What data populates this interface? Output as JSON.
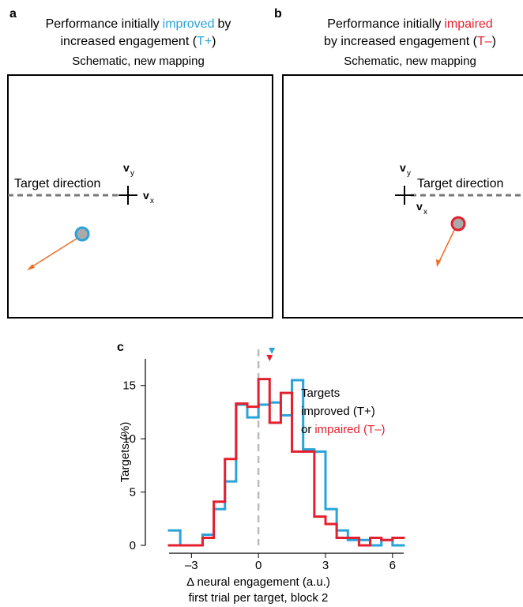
{
  "panels": [
    {
      "letter": "a",
      "title_parts": [
        "Performance initially",
        "improved",
        "by",
        "increased engagement (",
        "T+",
        ")"
      ],
      "subtitle": "Schematic, new mapping",
      "target_label": "Target direction",
      "vy": {
        "main": "v",
        "sub": "y"
      },
      "vx": {
        "main": "v",
        "sub": "x"
      }
    },
    {
      "letter": "b",
      "title_parts": [
        "Performance initially",
        "impaired",
        "by increased engagement (",
        "T–",
        ")"
      ],
      "subtitle": "Schematic, new mapping",
      "target_label": "Target direction",
      "vy": {
        "main": "v",
        "sub": "y"
      },
      "vx": {
        "main": "v",
        "sub": "x"
      }
    }
  ],
  "chart_letter": "c",
  "chart_data": {
    "type": "histogram",
    "xlabel": "Δ neural engagement (a.u.)",
    "xlabel2": "first trial per target, block 2",
    "ylabel": "Targets (%)",
    "bins": [
      -4,
      -3.5,
      -3,
      -2.5,
      -2,
      -1.5,
      -1,
      -0.5,
      0,
      0.5,
      1,
      1.5,
      2,
      2.5,
      3,
      3.5,
      4,
      4.5,
      5,
      5.5,
      6,
      6.5
    ],
    "series": [
      {
        "name": "improved (T+)",
        "color": "#29a3d8",
        "mean": 0.6,
        "values": [
          1.4,
          0,
          0,
          1.0,
          3.4,
          6.0,
          13.2,
          12.0,
          13.2,
          13.4,
          12.2,
          15.5,
          9.0,
          8.8,
          3.4,
          1.4,
          0.5,
          0.5,
          0,
          0.5,
          0
        ]
      },
      {
        "name": "impaired (T–)",
        "color": "#e5202e",
        "mean": 0.5,
        "values": [
          0,
          0,
          0,
          0.7,
          4.1,
          8.1,
          13.3,
          13.0,
          15.6,
          11.5,
          14.3,
          8.8,
          8.8,
          2.7,
          2.0,
          0.7,
          0.7,
          0,
          0.7,
          0.5,
          0.7
        ]
      }
    ],
    "legend_title": "Targets",
    "legend_joiner": "or",
    "xlim": [
      -4,
      6.5
    ],
    "xticks": [
      {
        "value": -3,
        "label": "–3"
      },
      0,
      3,
      6
    ],
    "ylim": [
      0,
      17.5
    ],
    "yticks": [
      0,
      5,
      10,
      15
    ],
    "zero_line": true
  }
}
